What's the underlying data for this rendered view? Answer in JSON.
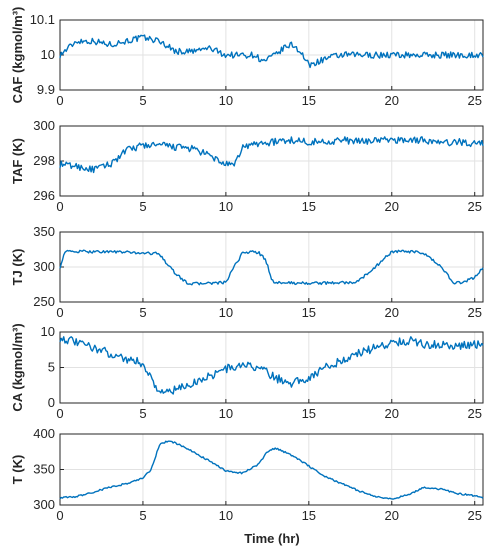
{
  "figure": {
    "xlabel": "Time (hr)",
    "line_color": "#0072BD"
  },
  "chart_data": [
    {
      "type": "line",
      "ylabel": "CAF (kgmol/m³)",
      "xlim": [
        0,
        25.5
      ],
      "ylim": [
        9.9,
        10.1
      ],
      "xticks": [
        "0",
        "5",
        "10",
        "15",
        "20",
        "25"
      ],
      "yticks": [
        "9.9",
        "10",
        "10.1"
      ],
      "grid": true,
      "series": [
        {
          "x": [
            0,
            1,
            2,
            3,
            4,
            5,
            6,
            7,
            8,
            9,
            10,
            11,
            11.8,
            12.2,
            13,
            13.5,
            14,
            14.5,
            15,
            16,
            17,
            18,
            19,
            20,
            21,
            22,
            23,
            24,
            25,
            25.5
          ],
          "y": [
            10.0,
            10.04,
            10.04,
            10.03,
            10.04,
            10.05,
            10.04,
            10.01,
            10.01,
            10.02,
            10.0,
            10.0,
            10.0,
            9.98,
            10.0,
            10.02,
            10.03,
            10.01,
            9.97,
            9.99,
            10.0,
            10.0,
            10.0,
            10.0,
            10.0,
            10.0,
            10.0,
            10.0,
            10.0,
            10.0
          ]
        }
      ]
    },
    {
      "type": "line",
      "ylabel": "TAF (K)",
      "xlim": [
        0,
        25.5
      ],
      "ylim": [
        296,
        300
      ],
      "xticks": [
        "0",
        "5",
        "10",
        "15",
        "20",
        "25"
      ],
      "yticks": [
        "296",
        "298",
        "300"
      ],
      "grid": true,
      "series": [
        {
          "x": [
            0,
            1,
            2,
            3,
            4,
            5,
            6,
            7,
            8,
            9,
            10,
            10.5,
            11,
            12,
            13,
            14,
            15,
            16,
            17,
            18,
            19,
            20,
            21,
            22,
            23,
            24,
            25,
            25.5
          ],
          "y": [
            297.8,
            297.7,
            297.5,
            297.8,
            298.6,
            298.9,
            298.9,
            298.8,
            298.7,
            298.3,
            297.8,
            297.7,
            298.8,
            299.0,
            299.1,
            299.2,
            299.1,
            299.1,
            299.2,
            299.1,
            299.2,
            299.2,
            299.2,
            299.2,
            299.0,
            299.1,
            299.0,
            299.0
          ]
        }
      ]
    },
    {
      "type": "line",
      "ylabel": "TJ (K)",
      "xlim": [
        0,
        25.5
      ],
      "ylim": [
        250,
        350
      ],
      "xticks": [
        "0",
        "5",
        "10",
        "15",
        "20",
        "25"
      ],
      "yticks": [
        "250",
        "300",
        "350"
      ],
      "grid": true,
      "series": [
        {
          "x": [
            0,
            0.3,
            1,
            2,
            3,
            4,
            5,
            6,
            6.6,
            7,
            7.6,
            8,
            9,
            9.5,
            10,
            10.5,
            11,
            11.5,
            12,
            12.4,
            12.8,
            13,
            14,
            15,
            16,
            17,
            17.5,
            18,
            19,
            20,
            20.5,
            21,
            21.5,
            22,
            23,
            23.7,
            24.2,
            25,
            25.5
          ],
          "y": [
            300,
            322,
            322,
            322,
            322,
            321,
            320,
            319,
            300,
            290,
            278,
            276,
            277,
            277,
            278,
            300,
            320,
            322,
            320,
            310,
            280,
            278,
            277,
            277,
            277,
            278,
            277,
            280,
            300,
            322,
            322,
            322,
            321,
            318,
            300,
            278,
            277,
            285,
            300
          ]
        }
      ]
    },
    {
      "type": "line",
      "ylabel": "CA (kgmol/m³)",
      "xlim": [
        0,
        25.5
      ],
      "ylim": [
        0,
        10
      ],
      "xticks": [
        "0",
        "5",
        "10",
        "15",
        "20",
        "25"
      ],
      "yticks": [
        "0",
        "5",
        "10"
      ],
      "grid": true,
      "series": [
        {
          "x": [
            0,
            1,
            2,
            3,
            4,
            5,
            5.5,
            6,
            7,
            8,
            9,
            10,
            11,
            12,
            13,
            14,
            15,
            16,
            17,
            18,
            19,
            20,
            21,
            22,
            23,
            24,
            25,
            25.5
          ],
          "y": [
            9.2,
            8.5,
            7.8,
            7.0,
            6.2,
            5.6,
            3.5,
            1.5,
            1.8,
            2.8,
            3.8,
            4.8,
            5.3,
            5.0,
            3.5,
            2.8,
            3.6,
            5.0,
            6.0,
            7.0,
            7.8,
            8.5,
            8.8,
            8.3,
            8.2,
            8.0,
            8.2,
            8.5
          ]
        }
      ]
    },
    {
      "type": "line",
      "ylabel": "T (K)",
      "xlim": [
        0,
        25.5
      ],
      "ylim": [
        300,
        400
      ],
      "xticks": [
        "0",
        "5",
        "10",
        "15",
        "20",
        "25"
      ],
      "yticks": [
        "300",
        "350",
        "400"
      ],
      "grid": true,
      "series": [
        {
          "x": [
            0,
            1,
            2,
            3,
            4,
            5,
            5.5,
            6,
            6.5,
            7,
            8,
            9,
            10,
            11,
            12,
            12.5,
            13,
            14,
            15,
            16,
            17,
            18,
            19,
            20,
            21,
            22,
            23,
            24,
            25,
            25.5
          ],
          "y": [
            310,
            312,
            318,
            325,
            330,
            338,
            350,
            385,
            390,
            387,
            375,
            362,
            348,
            345,
            358,
            375,
            380,
            370,
            355,
            340,
            330,
            320,
            312,
            308,
            315,
            325,
            322,
            316,
            313,
            310
          ]
        }
      ]
    }
  ]
}
